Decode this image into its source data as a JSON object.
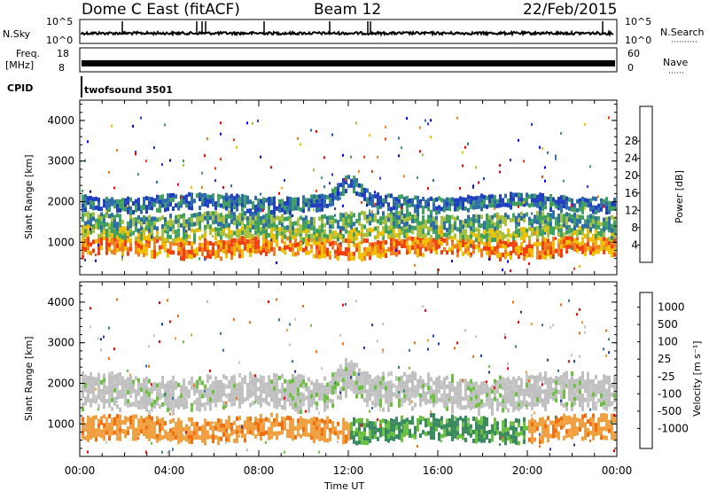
{
  "header": {
    "title": "Dome C East (fitACF)",
    "beam": "Beam 12",
    "date": "22/Feb/2015"
  },
  "strips": {
    "nsky_label": "N.Sky",
    "nsearch_label": "N.Search",
    "nsky_ticks": [
      "10^5",
      "10^0"
    ],
    "nsearch_ticks": [
      "10^5",
      "10^0"
    ],
    "freq_label": "Freq.",
    "freq_unit": "[MHz]",
    "freq_ticks": [
      "18",
      "8"
    ],
    "nave_label": "Nave",
    "nave_ticks": [
      "60",
      "0"
    ],
    "cpid_label": "CPID",
    "cpid_value": "twofsound 3501"
  },
  "chart_data": [
    {
      "type": "heatmap",
      "panel": "power",
      "ylabel": "Slant Range [km]",
      "yticks": [
        "1000",
        "2000",
        "3000",
        "4000"
      ],
      "ylim": [
        200,
        4500
      ],
      "xlim_hours": [
        0,
        24
      ],
      "colorbar": {
        "label": "Power [dB]",
        "ticks": [
          "4",
          "8",
          "12",
          "16",
          "20",
          "24",
          "28"
        ],
        "colors": [
          "#0000ff",
          "#2040c0",
          "#2e6ea8",
          "#40a060",
          "#a8c040",
          "#f0c000",
          "#f08020",
          "#f04010",
          "#ff0000"
        ]
      },
      "bands": [
        {
          "center_km": 900,
          "half_width_km": 200,
          "value_db": 24
        },
        {
          "center_km": 1250,
          "half_width_km": 120,
          "value_db": 16
        },
        {
          "center_km": 1550,
          "half_width_km": 150,
          "value_db": 12
        },
        {
          "center_km": 2000,
          "half_width_km": 150,
          "value_db": 8
        }
      ]
    },
    {
      "type": "heatmap",
      "panel": "velocity",
      "ylabel": "Slant Range [km]",
      "yticks": [
        "1000",
        "2000",
        "3000",
        "4000"
      ],
      "ylim": [
        200,
        4500
      ],
      "xlim_hours": [
        0,
        24
      ],
      "colorbar": {
        "label": "Velocity [m s⁻¹]",
        "ticks": [
          "1000",
          "500",
          "100",
          "25",
          "-25",
          "-100",
          "-500",
          "-1000"
        ],
        "colors": [
          "#1e3fa0",
          "#3470b0",
          "#3a8a60",
          "#6cc040",
          "#c0c0c0",
          "#c8c8c8",
          "#f0a040",
          "#f07010",
          "#ff0000"
        ]
      },
      "bands": [
        {
          "center_km": 900,
          "half_width_km": 250,
          "value_ms": -300
        },
        {
          "center_km": 1800,
          "half_width_km": 350,
          "value_ms": 0
        }
      ]
    }
  ],
  "xaxis": {
    "label": "Time UT",
    "ticks": [
      "00:00",
      "04:00",
      "08:00",
      "12:00",
      "16:00",
      "20:00",
      "00:00"
    ]
  }
}
